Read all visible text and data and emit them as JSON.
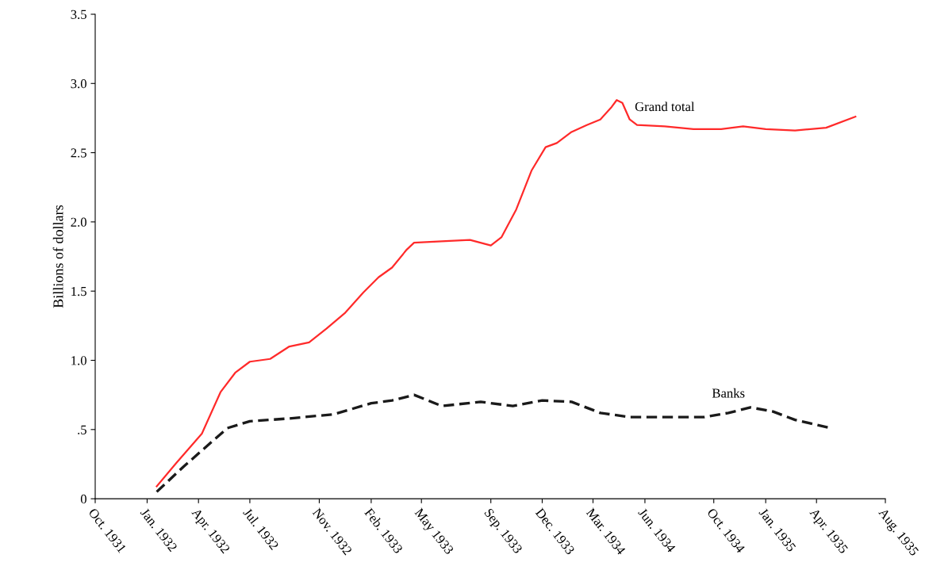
{
  "chart_data": {
    "type": "line",
    "ylabel": "Billions of dollars",
    "xlim": [
      "1931-10",
      "1935-08"
    ],
    "xticks": [
      {
        "value": "1931-10",
        "label": "Oct. 1931"
      },
      {
        "value": "1932-01",
        "label": "Jan. 1932"
      },
      {
        "value": "1932-04",
        "label": "Apr. 1932"
      },
      {
        "value": "1932-07",
        "label": "Jul. 1932"
      },
      {
        "value": "1932-11",
        "label": "Nov. 1932"
      },
      {
        "value": "1933-02",
        "label": "Feb. 1933"
      },
      {
        "value": "1933-05",
        "label": "May 1933"
      },
      {
        "value": "1933-09",
        "label": "Sep. 1933"
      },
      {
        "value": "1933-12",
        "label": "Dec. 1933"
      },
      {
        "value": "1934-03",
        "label": "Mar. 1934"
      },
      {
        "value": "1934-06",
        "label": "Jun. 1934"
      },
      {
        "value": "1934-10",
        "label": "Oct. 1934"
      },
      {
        "value": "1935-01",
        "label": "Jan. 1935"
      },
      {
        "value": "1935-04",
        "label": "Apr. 1935"
      },
      {
        "value": "1935-08",
        "label": "Aug. 1935"
      }
    ],
    "ylim": [
      0,
      3.5
    ],
    "yticks": [
      0,
      {
        "value": 0.5,
        "label": ".5"
      },
      {
        "value": 1.0,
        "label": "1.0"
      },
      {
        "value": 1.5,
        "label": "1.5"
      },
      {
        "value": 2.0,
        "label": "2.0"
      },
      {
        "value": 2.5,
        "label": "2.5"
      },
      {
        "value": 3.0,
        "label": "3.0"
      },
      {
        "value": 3.5,
        "label": "3.5"
      }
    ],
    "grid": false,
    "legend": false,
    "series": [
      {
        "name": "Grand total",
        "color": "#ff2a2a",
        "line_style": "solid",
        "x": [
          "1932-01-18",
          "1932-02-22",
          "1932-04-07",
          "1932-05-10",
          "1932-06-05",
          "1932-07-01",
          "1932-08-06",
          "1932-09-09",
          "1932-10-14",
          "1932-11-14",
          "1932-12-16",
          "1933-01-18",
          "1933-02-14",
          "1933-03-10",
          "1933-04-05",
          "1933-04-18",
          "1933-06-06",
          "1933-07-26",
          "1933-09-01",
          "1933-09-20",
          "1933-10-16",
          "1933-11-12",
          "1933-12-07",
          "1933-12-27",
          "1934-01-22",
          "1934-02-18",
          "1934-03-14",
          "1934-04-03",
          "1934-04-12",
          "1934-04-22",
          "1934-05-05",
          "1934-05-18",
          "1934-07-06",
          "1934-08-26",
          "1934-10-14",
          "1934-11-22",
          "1935-01-01",
          "1935-02-22",
          "1935-04-18",
          "1935-06-09"
        ],
        "values": [
          0.09,
          0.26,
          0.47,
          0.77,
          0.91,
          0.99,
          1.01,
          1.1,
          1.13,
          1.23,
          1.34,
          1.49,
          1.6,
          1.67,
          1.8,
          1.85,
          1.86,
          1.87,
          1.83,
          1.89,
          2.09,
          2.37,
          2.54,
          2.57,
          2.65,
          2.7,
          2.74,
          2.83,
          2.88,
          2.86,
          2.74,
          2.7,
          2.69,
          2.67,
          2.67,
          2.69,
          2.67,
          2.66,
          2.68,
          2.76
        ]
      },
      {
        "name": "Banks",
        "color": "#1a1a1a",
        "line_style": "dashed",
        "x": [
          "1932-01-18",
          "1932-03-05",
          "1932-05-22",
          "1932-07-01",
          "1932-09-09",
          "1932-11-27",
          "1933-02-01",
          "1933-03-10",
          "1933-04-18",
          "1933-06-06",
          "1933-08-14",
          "1933-10-10",
          "1933-12-01",
          "1934-01-22",
          "1934-03-14",
          "1934-05-05",
          "1934-07-06",
          "1934-09-14",
          "1934-10-27",
          "1934-12-05",
          "1935-01-14",
          "1935-02-22",
          "1935-04-26"
        ],
        "values": [
          0.05,
          0.23,
          0.51,
          0.56,
          0.58,
          0.61,
          0.69,
          0.71,
          0.75,
          0.67,
          0.7,
          0.67,
          0.71,
          0.7,
          0.62,
          0.59,
          0.59,
          0.59,
          0.62,
          0.66,
          0.63,
          0.57,
          0.51
        ]
      }
    ]
  }
}
